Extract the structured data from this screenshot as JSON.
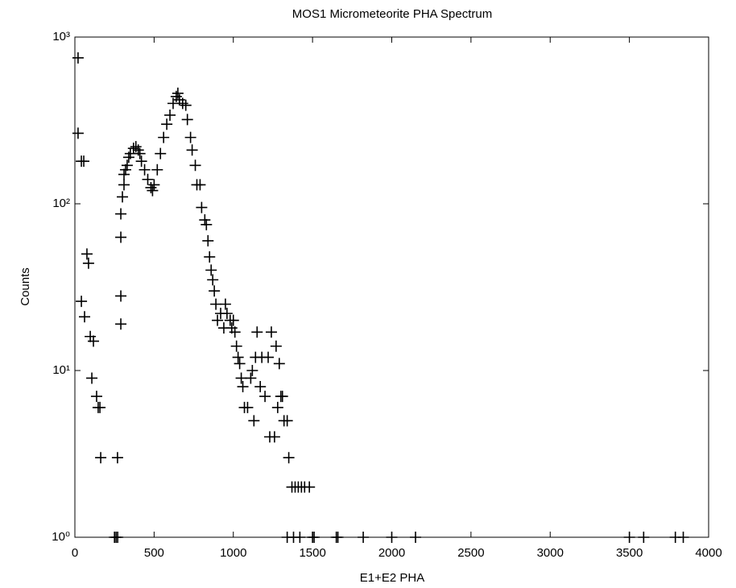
{
  "chart_data": {
    "type": "scatter",
    "title": "MOS1 Micrometeorite PHA Spectrum",
    "x_label": "E1+E2 PHA",
    "y_label": "Counts",
    "log_y": true,
    "marker": "+",
    "color": "#000000",
    "xlim": [
      0,
      4000
    ],
    "xticks": [
      0,
      500,
      1000,
      1500,
      2000,
      2500,
      3000,
      3500,
      4000
    ],
    "ylim": [
      1,
      1000
    ],
    "yticks": [
      {
        "value": 1,
        "label": "10⁰"
      },
      {
        "value": 10,
        "label": "10¹"
      },
      {
        "value": 100,
        "label": "10²"
      },
      {
        "value": 1000,
        "label": "10³"
      }
    ],
    "x": [
      20,
      20,
      41,
      56,
      41,
      61,
      76,
      86,
      97,
      117,
      107,
      137,
      147,
      158,
      163,
      269,
      290,
      290,
      290,
      290,
      300,
      310,
      310,
      320,
      330,
      340,
      350,
      370,
      385,
      400,
      410,
      420,
      440,
      460,
      480,
      490,
      500,
      520,
      540,
      560,
      580,
      600,
      620,
      640,
      650,
      660,
      680,
      700,
      710,
      730,
      740,
      760,
      770,
      790,
      800,
      820,
      830,
      840,
      850,
      860,
      870,
      880,
      890,
      900,
      920,
      940,
      950,
      960,
      980,
      990,
      1000,
      1010,
      1020,
      1030,
      1040,
      1050,
      1060,
      1070,
      1090,
      1110,
      1120,
      1130,
      1140,
      1150,
      1170,
      1180,
      1200,
      1220,
      1230,
      1240,
      1260,
      1270,
      1280,
      1290,
      1300,
      1310,
      1320,
      1340,
      1350,
      1370,
      1390,
      1410,
      1430,
      1450,
      1480,
      250,
      260,
      270,
      1340,
      1380,
      1420,
      1500,
      1510,
      1650,
      1660,
      1820,
      2000,
      2150,
      3500,
      3590,
      3790,
      3840
    ],
    "values": [
      750,
      265,
      180,
      180,
      26,
      21,
      50,
      44,
      16,
      15,
      9,
      7,
      6,
      6,
      3,
      3,
      19,
      28,
      63,
      87,
      110,
      130,
      150,
      160,
      170,
      190,
      200,
      215,
      220,
      210,
      200,
      180,
      160,
      140,
      125,
      120,
      130,
      160,
      200,
      250,
      300,
      340,
      400,
      440,
      460,
      420,
      400,
      390,
      320,
      250,
      210,
      170,
      130,
      130,
      95,
      80,
      75,
      60,
      48,
      40,
      35,
      30,
      25,
      20,
      22,
      18,
      25,
      22,
      20,
      18,
      20,
      17,
      14,
      12,
      11,
      9,
      8,
      6,
      6,
      9,
      10,
      5,
      12,
      17,
      8,
      12,
      7,
      12,
      4,
      17,
      4,
      14,
      6,
      11,
      7,
      7,
      5,
      5,
      3,
      2,
      2,
      2,
      2,
      2,
      2,
      1,
      1,
      1,
      1,
      1,
      1,
      1,
      1,
      1,
      1,
      1,
      1,
      1,
      1,
      1,
      1,
      1
    ]
  }
}
